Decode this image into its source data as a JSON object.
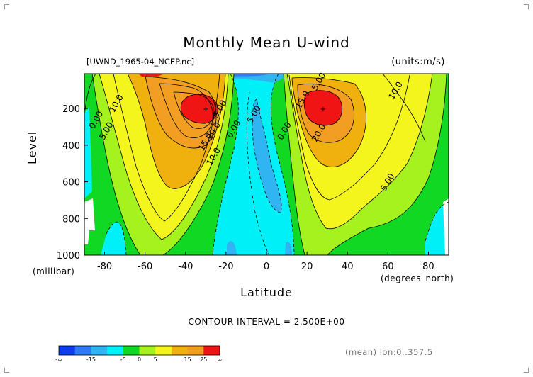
{
  "title": "Monthly Mean U-wind",
  "file_label": "[UWND_1965-04_NCEP.nc]",
  "units_label": "(units:m/s)",
  "y_axis_label": "Level",
  "y_axis_unit": "(millibar)",
  "x_axis_label": "Latitude",
  "x_axis_unit": "(degrees_north)",
  "contour_interval_text": "CONTOUR INTERVAL = 2.500E+00",
  "mean_text": "(mean) lon:0..357.5",
  "colors": {
    "c1": "#0b3cf0",
    "c2": "#2f7af5",
    "c3": "#30b4f2",
    "c4": "#00f0f8",
    "c5": "#10d823",
    "c6": "#a6f21f",
    "c7": "#f5f51e",
    "c8": "#f0b00e",
    "c9": "#f29e23",
    "c10": "#f01414"
  },
  "chart_data": {
    "type": "heatmap",
    "title": "Monthly Mean U-wind",
    "xlabel": "Latitude",
    "ylabel": "Level",
    "x_ticks": [
      "-80",
      "-60",
      "-40",
      "-20",
      "0",
      "20",
      "40",
      "60",
      "80"
    ],
    "y_ticks": [
      "200",
      "400",
      "600",
      "800",
      "1000"
    ],
    "xlim": [
      -90,
      90
    ],
    "ylim": [
      1000,
      10
    ],
    "contour_interval": 2.5,
    "contour_labels": [
      {
        "text": "10.0",
        "lat": -73,
        "lev": 180
      },
      {
        "text": "0.00",
        "lat": -83,
        "lev": 270
      },
      {
        "text": "5.00",
        "lat": -78,
        "lev": 330
      },
      {
        "text": "15.0",
        "lat": -29,
        "lev": 390
      },
      {
        "text": "20.0",
        "lat": -25,
        "lev": 330
      },
      {
        "text": "10.0",
        "lat": -25,
        "lev": 470
      },
      {
        "text": "5.00",
        "lat": -22,
        "lev": 210
      },
      {
        "text": "0.00",
        "lat": -15,
        "lev": 320
      },
      {
        "text": "5.00",
        "lat": -5,
        "lev": 240
      },
      {
        "text": "0.00",
        "lat": 10,
        "lev": 330
      },
      {
        "text": "5.00",
        "lat": 27,
        "lev": 60
      },
      {
        "text": "15.0",
        "lat": 19,
        "lev": 160
      },
      {
        "text": "20.0",
        "lat": 27,
        "lev": 340
      },
      {
        "text": "10.0",
        "lat": 65,
        "lev": 110
      },
      {
        "text": "5.00",
        "lat": 61,
        "lev": 610
      }
    ],
    "jet_maxima": [
      {
        "lat": -30,
        "lev": 200,
        "value": 27.5
      },
      {
        "lat": 28,
        "lev": 200,
        "value": 27.5
      }
    ],
    "legend": {
      "labels": [
        "-∞",
        "-15",
        "-5",
        "0",
        "5",
        "15",
        "25",
        "∞"
      ],
      "colors": [
        "#0b3cf0",
        "#2f7af5",
        "#30b4f2",
        "#00f0f8",
        "#10d823",
        "#a6f21f",
        "#f5f51e",
        "#f0b00e",
        "#f29e23",
        "#f01414"
      ]
    }
  }
}
